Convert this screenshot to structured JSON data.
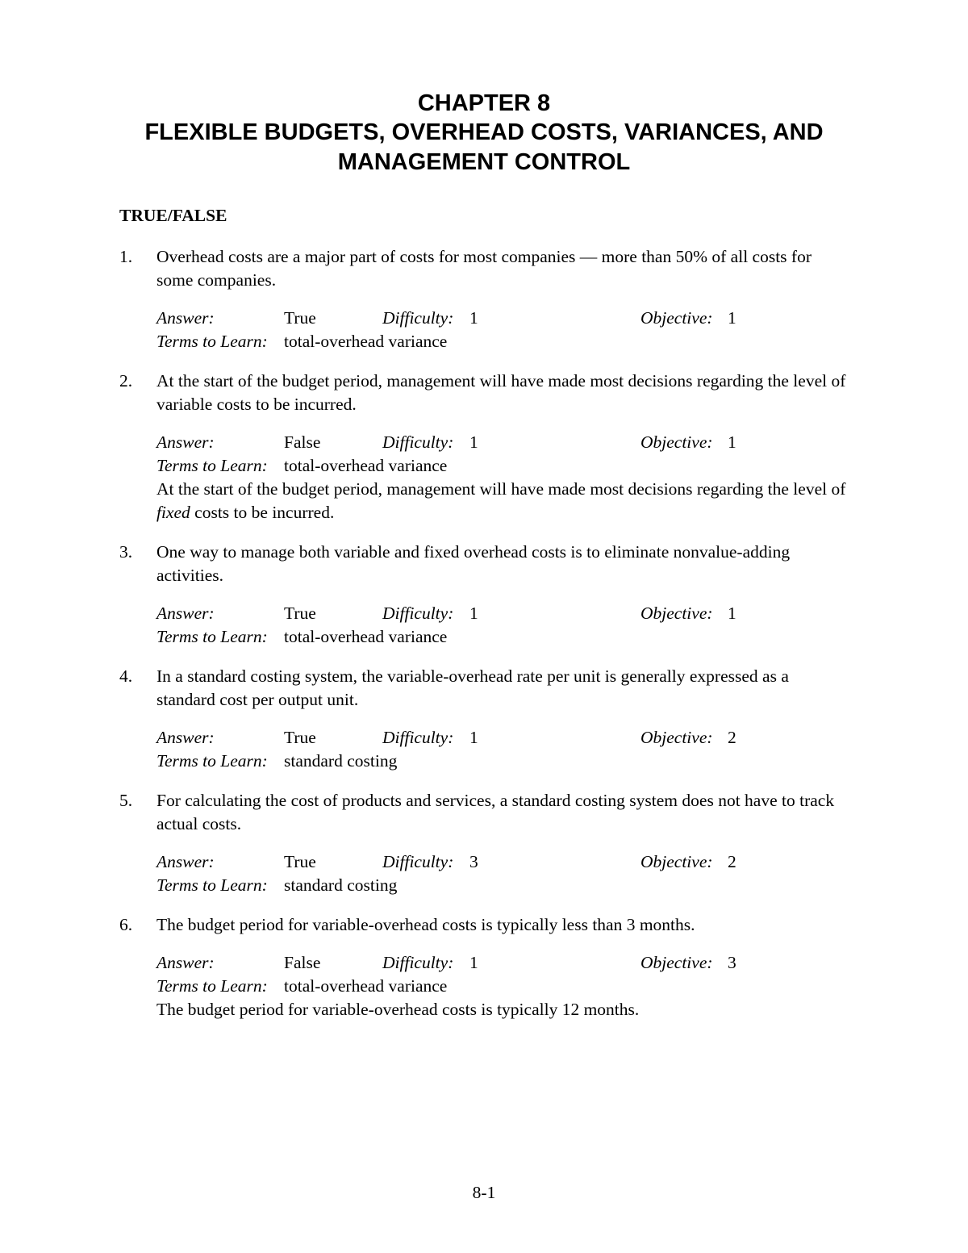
{
  "heading": {
    "line1": "CHAPTER 8",
    "line2": "FLEXIBLE BUDGETS, OVERHEAD COSTS, VARIANCES, AND MANAGEMENT CONTROL"
  },
  "section_label": "TRUE/FALSE",
  "labels": {
    "answer": "Answer",
    "difficulty": "Difficulty",
    "objective": "Objective",
    "terms": "Terms to Learn"
  },
  "page_number": "8-1",
  "questions": [
    {
      "num": "1.",
      "text": "Overhead costs are a major part of costs for most companies — more than 50% of all costs for some companies.",
      "answer": "True",
      "difficulty": "1",
      "objective": "1",
      "terms": "total-overhead variance",
      "explanation_pre": "",
      "explanation_em": "",
      "explanation_post": ""
    },
    {
      "num": "2.",
      "text": "At the start of the budget period, management will have made most decisions regarding the level of variable costs to be incurred.",
      "answer": "False",
      "difficulty": "1",
      "objective": "1",
      "terms": "total-overhead variance",
      "explanation_pre": "At the start of the budget period, management will have made most decisions regarding the level of ",
      "explanation_em": "fixed",
      "explanation_post": " costs to be incurred."
    },
    {
      "num": "3.",
      "text": "One way to manage both variable and fixed overhead costs is to eliminate nonvalue-adding activities.",
      "answer": "True",
      "difficulty": "1",
      "objective": "1",
      "terms": "total-overhead variance",
      "explanation_pre": "",
      "explanation_em": "",
      "explanation_post": ""
    },
    {
      "num": "4.",
      "text": "In a standard costing system, the variable-overhead rate per unit is generally expressed as a standard cost per output unit.",
      "answer": "True",
      "difficulty": "1",
      "objective": "2",
      "terms": "standard costing",
      "explanation_pre": "",
      "explanation_em": "",
      "explanation_post": ""
    },
    {
      "num": "5.",
      "text": "For calculating the cost of products and services, a standard costing system does not have to track actual costs.",
      "answer": "True",
      "difficulty": "3",
      "objective": "2",
      "terms": "standard costing",
      "explanation_pre": "",
      "explanation_em": "",
      "explanation_post": ""
    },
    {
      "num": "6.",
      "text": "The budget period for variable-overhead costs is typically less than 3 months.",
      "answer": "False",
      "difficulty": "1",
      "objective": "3",
      "terms": "total-overhead variance",
      "explanation_pre": "The budget period for variable-overhead costs is typically 12 months.",
      "explanation_em": "",
      "explanation_post": ""
    }
  ]
}
